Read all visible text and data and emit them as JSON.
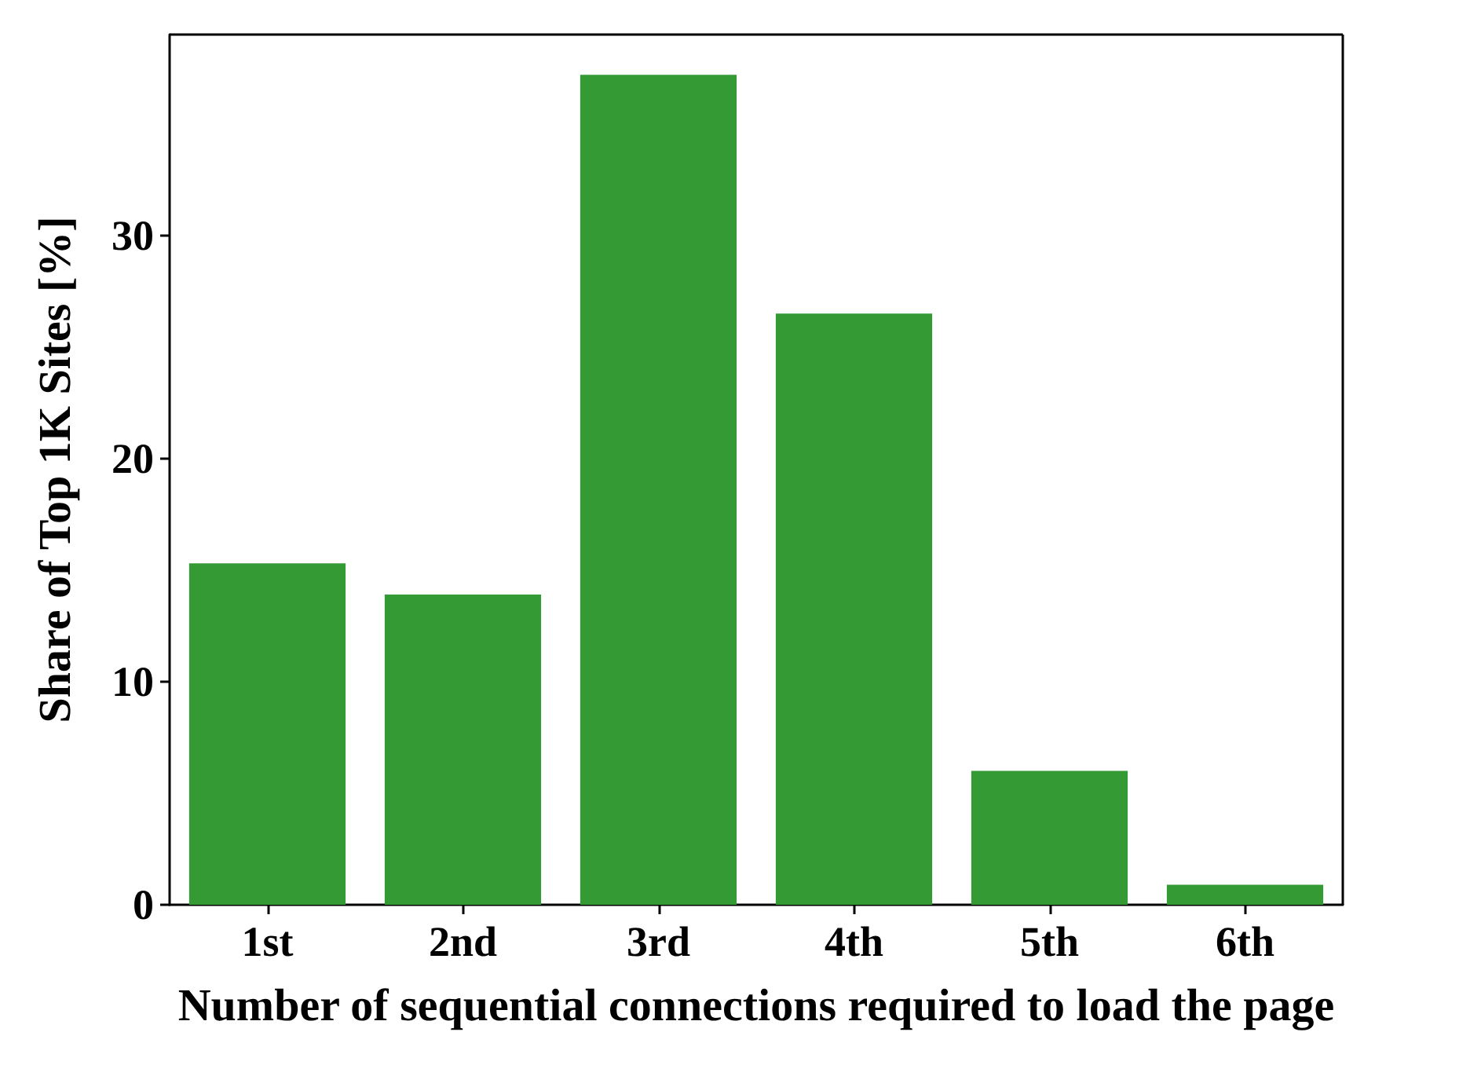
{
  "chart_data": {
    "type": "bar",
    "xlabel": "Number of sequential connections required to load the page",
    "ylabel": "Share of Top 1K Sites [%]",
    "categories": [
      "1st",
      "2nd",
      "3rd",
      "4th",
      "5th",
      "6th"
    ],
    "values": [
      15.3,
      13.9,
      37.2,
      26.5,
      6.0,
      0.9
    ],
    "color": "#349a34",
    "ylim": [
      0,
      39
    ],
    "yticks": [
      0,
      10,
      20,
      30
    ],
    "grid": false
  }
}
